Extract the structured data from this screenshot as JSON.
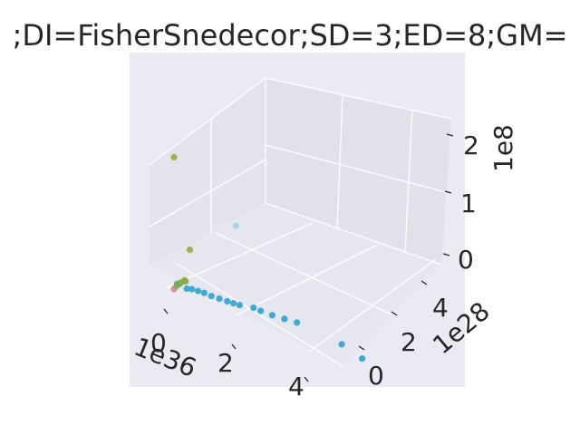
{
  "chart_data": {
    "type": "scatter",
    "title": ";DI=FisherSnedecor;SD=3;ED=8;GM=",
    "x_offset_label": "1e36",
    "y_offset_label": "1e28",
    "z_offset_label": "1e8",
    "x_ticks": [
      "0",
      "2",
      "4"
    ],
    "y_ticks": [
      "0",
      "2",
      "4"
    ],
    "z_ticks": [
      "0",
      "1",
      "2"
    ],
    "grid": true,
    "colors": {
      "pink": "#e8809a",
      "green": "#7eaa55",
      "olive": "#9aa838",
      "teal": "#3bb3a0",
      "blue": "#2ea3d0",
      "lightblue": "#8ecfe8"
    },
    "points": [
      {
        "x": 0.0,
        "y": 0.0,
        "z": 2.05,
        "color": "olive"
      },
      {
        "x": 0.0,
        "y": 1.0,
        "z": 0.45,
        "color": "olive"
      },
      {
        "x": 0.0,
        "y": 3.9,
        "z": 0.35,
        "color": "lightblue"
      },
      {
        "x": 0.0,
        "y": 0.0,
        "z": 0.0,
        "color": "pink"
      },
      {
        "x": 0.0,
        "y": 0.15,
        "z": 0.02,
        "color": "green"
      },
      {
        "x": 0.0,
        "y": 0.2,
        "z": 0.05,
        "color": "green"
      },
      {
        "x": 0.03,
        "y": 0.3,
        "z": 0.04,
        "color": "teal"
      },
      {
        "x": 0.05,
        "y": 0.35,
        "z": 0.06,
        "color": "olive"
      },
      {
        "x": 0.05,
        "y": 0.55,
        "z": 0.06,
        "color": "olive"
      },
      {
        "x": 0.08,
        "y": 0.55,
        "z": 0.05,
        "color": "green"
      },
      {
        "x": 0.2,
        "y": 0.35,
        "z": 0.0,
        "color": "blue"
      },
      {
        "x": 0.3,
        "y": 0.45,
        "z": 0.0,
        "color": "blue"
      },
      {
        "x": 0.45,
        "y": 0.5,
        "z": 0.0,
        "color": "blue"
      },
      {
        "x": 0.6,
        "y": 0.55,
        "z": 0.0,
        "color": "blue"
      },
      {
        "x": 0.8,
        "y": 0.55,
        "z": 0.0,
        "color": "blue"
      },
      {
        "x": 1.0,
        "y": 0.6,
        "z": 0.0,
        "color": "blue"
      },
      {
        "x": 1.2,
        "y": 0.65,
        "z": 0.0,
        "color": "blue"
      },
      {
        "x": 1.35,
        "y": 0.7,
        "z": 0.0,
        "color": "blue"
      },
      {
        "x": 1.5,
        "y": 0.75,
        "z": 0.0,
        "color": "blue"
      },
      {
        "x": 1.8,
        "y": 0.95,
        "z": 0.0,
        "color": "blue"
      },
      {
        "x": 2.0,
        "y": 0.95,
        "z": 0.0,
        "color": "blue"
      },
      {
        "x": 2.3,
        "y": 1.0,
        "z": 0.0,
        "color": "blue"
      },
      {
        "x": 2.6,
        "y": 1.1,
        "z": 0.0,
        "color": "blue"
      },
      {
        "x": 2.9,
        "y": 1.2,
        "z": 0.0,
        "color": "blue"
      },
      {
        "x": 4.2,
        "y": 1.1,
        "z": 0.0,
        "color": "blue"
      },
      {
        "x": 4.9,
        "y": 0.8,
        "z": 0.0,
        "color": "blue"
      }
    ]
  }
}
